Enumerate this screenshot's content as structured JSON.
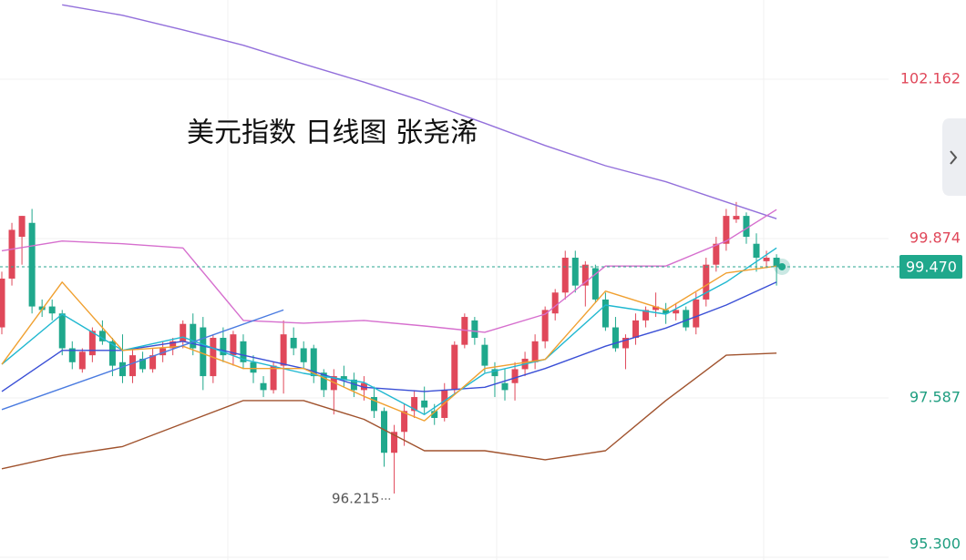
{
  "chart_data": {
    "type": "candlestick",
    "title": "美元指数 日线图 张尧浠",
    "ylim": [
      95.261,
      103.299
    ],
    "yticks": [
      102.162,
      99.874,
      97.587,
      {
        "value": 95.3,
        "label": "95.300"
      }
    ],
    "ytick_colors": [
      "#e0485a",
      "#e0485a",
      "#1f9e80",
      "#1f9e80"
    ],
    "grid": true,
    "up_color": "#e0485a",
    "down_color": "#1fa88c",
    "ohlc": [
      [
        98.6,
        99.4,
        98.5,
        99.3
      ],
      [
        99.3,
        100.1,
        99.2,
        100.0
      ],
      [
        99.9,
        100.2,
        99.5,
        100.2
      ],
      [
        100.1,
        100.3,
        98.8,
        98.9
      ],
      [
        98.9,
        99.0,
        98.75,
        98.85
      ],
      [
        98.9,
        99.0,
        98.7,
        98.8
      ],
      [
        98.8,
        98.85,
        98.2,
        98.3
      ],
      [
        98.3,
        98.4,
        98.0,
        98.1
      ],
      [
        98.0,
        98.3,
        97.95,
        98.25
      ],
      [
        98.2,
        98.6,
        98.1,
        98.55
      ],
      [
        98.55,
        98.7,
        98.35,
        98.4
      ],
      [
        98.4,
        98.45,
        97.9,
        98.05
      ],
      [
        98.1,
        98.5,
        97.8,
        97.9
      ],
      [
        97.9,
        98.3,
        97.8,
        98.2
      ],
      [
        98.15,
        98.25,
        97.95,
        98.0
      ],
      [
        98.0,
        98.3,
        97.95,
        98.2
      ],
      [
        98.2,
        98.4,
        98.1,
        98.3
      ],
      [
        98.3,
        98.45,
        98.2,
        98.4
      ],
      [
        98.4,
        98.7,
        98.3,
        98.65
      ],
      [
        98.65,
        98.8,
        98.2,
        98.3
      ],
      [
        98.6,
        98.75,
        97.7,
        97.9
      ],
      [
        97.9,
        98.5,
        97.8,
        98.45
      ],
      [
        98.45,
        98.6,
        98.1,
        98.2
      ],
      [
        98.2,
        98.55,
        98.05,
        98.5
      ],
      [
        98.4,
        98.5,
        98.0,
        98.1
      ],
      [
        98.1,
        98.2,
        97.8,
        97.95
      ],
      [
        97.8,
        97.9,
        97.6,
        97.7
      ],
      [
        97.7,
        98.1,
        97.65,
        98.05
      ],
      [
        98.05,
        98.7,
        97.65,
        98.5
      ],
      [
        98.45,
        98.6,
        98.2,
        98.3
      ],
      [
        98.3,
        98.4,
        98.0,
        98.1
      ],
      [
        98.3,
        98.35,
        97.8,
        97.9
      ],
      [
        97.95,
        98.0,
        97.6,
        97.7
      ],
      [
        97.7,
        98.0,
        97.35,
        97.9
      ],
      [
        97.9,
        98.05,
        97.75,
        97.85
      ],
      [
        97.85,
        97.95,
        97.6,
        97.7
      ],
      [
        97.7,
        97.9,
        97.55,
        97.8
      ],
      [
        97.6,
        97.75,
        97.3,
        97.4
      ],
      [
        97.4,
        97.45,
        96.6,
        96.8
      ],
      [
        96.8,
        97.2,
        96.215,
        97.1
      ],
      [
        97.1,
        97.5,
        96.9,
        97.4
      ],
      [
        97.4,
        97.7,
        97.3,
        97.6
      ],
      [
        97.55,
        97.75,
        97.35,
        97.45
      ],
      [
        97.4,
        97.5,
        97.2,
        97.3
      ],
      [
        97.3,
        97.8,
        97.25,
        97.7
      ],
      [
        97.7,
        98.4,
        97.65,
        98.35
      ],
      [
        98.35,
        98.8,
        98.3,
        98.75
      ],
      [
        98.7,
        98.75,
        98.35,
        98.45
      ],
      [
        98.35,
        98.45,
        97.95,
        98.05
      ],
      [
        98.0,
        98.1,
        97.6,
        97.9
      ],
      [
        97.8,
        98.0,
        97.55,
        97.7
      ],
      [
        97.8,
        98.1,
        97.55,
        98.0
      ],
      [
        98.0,
        98.25,
        97.9,
        98.15
      ],
      [
        98.1,
        98.5,
        98.0,
        98.4
      ],
      [
        98.4,
        98.9,
        98.3,
        98.85
      ],
      [
        98.8,
        99.15,
        98.7,
        99.1
      ],
      [
        99.1,
        99.7,
        99.0,
        99.6
      ],
      [
        99.6,
        99.7,
        99.1,
        99.2
      ],
      [
        99.2,
        99.55,
        98.9,
        99.5
      ],
      [
        99.45,
        99.5,
        98.95,
        99.0
      ],
      [
        99.0,
        99.1,
        98.55,
        98.6
      ],
      [
        98.6,
        98.75,
        98.25,
        98.3
      ],
      [
        98.3,
        98.5,
        98.0,
        98.45
      ],
      [
        98.45,
        98.8,
        98.35,
        98.7
      ],
      [
        98.7,
        98.9,
        98.6,
        98.85
      ],
      [
        98.85,
        99.1,
        98.75,
        98.9
      ],
      [
        98.85,
        98.95,
        98.65,
        98.8
      ],
      [
        98.8,
        98.95,
        98.7,
        98.85
      ],
      [
        98.85,
        98.9,
        98.55,
        98.6
      ],
      [
        98.6,
        99.1,
        98.5,
        99.0
      ],
      [
        99.0,
        99.6,
        98.9,
        99.5
      ],
      [
        99.5,
        99.9,
        99.4,
        99.8
      ],
      [
        99.8,
        100.3,
        99.7,
        100.2
      ],
      [
        100.15,
        100.4,
        100.1,
        100.2
      ],
      [
        100.2,
        100.25,
        99.8,
        99.9
      ],
      [
        99.8,
        99.95,
        99.4,
        99.6
      ],
      [
        99.55,
        99.7,
        99.45,
        99.6
      ],
      [
        99.6,
        99.65,
        99.2,
        99.47
      ]
    ],
    "x": [
      0,
      6,
      12,
      18,
      24,
      30,
      36,
      42,
      48,
      54,
      60,
      66,
      72,
      77
    ],
    "lines": [
      {
        "color": "#9370db",
        "values": [
          null,
          103.23,
          103.08,
          102.87,
          102.65,
          102.38,
          102.12,
          101.84,
          101.53,
          101.21,
          100.92,
          100.69,
          100.4,
          100.16
        ]
      },
      {
        "color": "#d66fce",
        "values": [
          99.7,
          99.84,
          99.8,
          99.74,
          98.7,
          98.66,
          98.7,
          98.62,
          98.53,
          98.79,
          99.48,
          99.48,
          99.84,
          100.29
        ]
      },
      {
        "color": "#a0522d",
        "values": [
          96.57,
          96.76,
          96.89,
          97.22,
          97.55,
          97.55,
          97.28,
          96.83,
          96.83,
          96.7,
          96.83,
          97.55,
          98.2,
          98.23
        ]
      },
      {
        "color": "#3a4fd6",
        "values": [
          97.68,
          98.27,
          98.27,
          98.4,
          98.2,
          98.01,
          97.74,
          97.68,
          97.74,
          98.01,
          98.33,
          98.59,
          98.92,
          99.25
        ]
      },
      {
        "color": "#20b8d0",
        "values": [
          98.07,
          98.79,
          98.27,
          98.46,
          98.14,
          97.94,
          97.81,
          97.35,
          97.94,
          98.14,
          98.92,
          98.79,
          99.25,
          99.74
        ]
      },
      {
        "color": "#f0a030",
        "values": [
          98.07,
          99.25,
          98.27,
          98.33,
          98.01,
          98.01,
          97.61,
          97.26,
          98.01,
          98.14,
          99.12,
          98.85,
          99.38,
          99.48
        ]
      }
    ],
    "trend_line": {
      "color": "#4a7be0",
      "x": [
        0,
        28
      ],
      "values": [
        97.42,
        98.85
      ]
    },
    "last_price": {
      "value": 99.47,
      "label": "99.470"
    },
    "low_annotation": 96.215
  }
}
